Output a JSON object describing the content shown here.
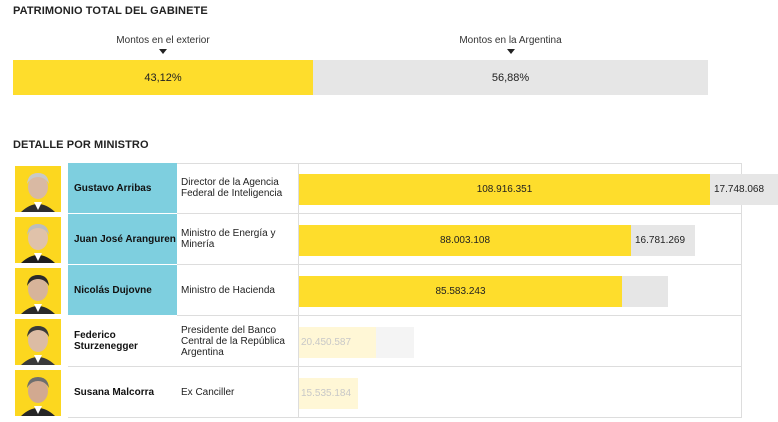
{
  "titles": {
    "total": "PATRIMONIO TOTAL DEL GABINETE",
    "detail": "DETALLE POR MINISTRO"
  },
  "colors": {
    "exterior": "#fedd2c",
    "argentina": "#e6e6e6",
    "highlight": "#7ecfdf"
  },
  "chart_data": [
    {
      "type": "bar",
      "orientation": "horizontal-stacked",
      "series": [
        {
          "name": "Montos en el exterior",
          "values": [
            43.12
          ],
          "label": "43,12%"
        },
        {
          "name": "Montos en la Argentina",
          "values": [
            56.88
          ],
          "label": "56,88%"
        }
      ],
      "unit": "%",
      "xlim": [
        0,
        100
      ]
    },
    {
      "type": "bar",
      "orientation": "horizontal-stacked",
      "categories": [
        "Gustavo Arribas",
        "Juan José Aranguren",
        "Nicolás Dujovne",
        "Federico Sturzenegger",
        "Susana Malcorra"
      ],
      "roles": [
        "Director de la Agencia Federal de Inteligencia",
        "Ministro de Energía y Minería",
        "Ministro de Hacienda",
        "Presidente del Banco Central de la República Argentina",
        "Ex Canciller"
      ],
      "series": [
        {
          "name": "Montos en el exterior",
          "values": [
            108916351,
            88003108,
            85583243,
            20450587,
            15535184
          ],
          "labels": [
            "108.916.351",
            "88.003.108",
            "85.583.243",
            "20.450.587",
            "15.535.184"
          ]
        },
        {
          "name": "Montos en la Argentina",
          "values": [
            17748068,
            16781269,
            12000000,
            10000000,
            0
          ],
          "labels": [
            "17.748.068",
            "16.781.269",
            "",
            "",
            ""
          ]
        }
      ],
      "highlighted": [
        true,
        true,
        true,
        false,
        false
      ],
      "xlim": [
        0,
        135000000
      ]
    }
  ]
}
